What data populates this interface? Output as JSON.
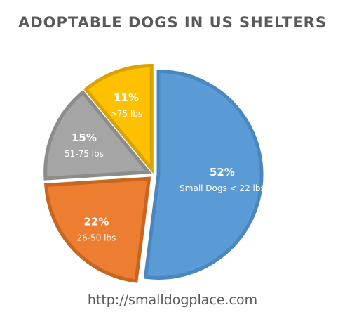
{
  "chart_data": {
    "type": "pie",
    "title": "ADOPTABLE DOGS IN US SHELTERS",
    "start_angle_deg": 0,
    "direction": "clockwise",
    "exploded": true,
    "slices": [
      {
        "label": "Small Dogs < 22 lbs",
        "value": 52,
        "value_label": "52%",
        "color": "#5b9bd5",
        "border": "#4a86bf"
      },
      {
        "label": "26-50 lbs",
        "value": 22,
        "value_label": "22%",
        "color": "#ed7d31",
        "border": "#c8651f"
      },
      {
        "label": "51-75 lbs",
        "value": 15,
        "value_label": "15%",
        "color": "#a5a5a5",
        "border": "#8c8c8c"
      },
      {
        "label": ">75 lbs",
        "value": 11,
        "value_label": "11%",
        "color": "#ffc000",
        "border": "#d9a300"
      }
    ]
  },
  "footer": {
    "url": "http://smalldogplace.com"
  }
}
